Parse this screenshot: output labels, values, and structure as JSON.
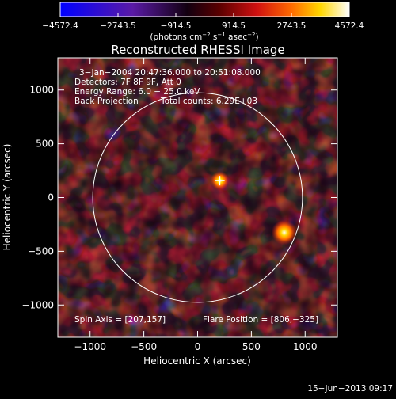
{
  "chart_data": {
    "type": "heatmap",
    "title": "Reconstructed RHESSI Image",
    "xlabel": "Heliocentric X (arcsec)",
    "ylabel": "Heliocentric Y (arcsec)",
    "xlim": [
      -1300,
      1300
    ],
    "ylim": [
      -1300,
      1300
    ],
    "x_ticks": [
      -1000,
      -500,
      0,
      500,
      1000
    ],
    "y_ticks": [
      -1000,
      -500,
      0,
      500,
      1000
    ],
    "x_tick_labels": [
      "−1000",
      "−500",
      "0",
      "500",
      "1000"
    ],
    "y_tick_labels": [
      "−1000",
      "−500",
      "0",
      "500",
      "1000"
    ],
    "colorbar": {
      "range": [
        -4572.4,
        4572.4
      ],
      "tick_values": [
        -4572.4,
        -2743.5,
        -914.5,
        914.5,
        2743.5,
        4572.4
      ],
      "tick_labels": [
        "−4572.4",
        "−2743.5",
        "−914.5",
        "914.5",
        "2743.5",
        "4572.4"
      ],
      "units_main": "(photons cm",
      "units_exp1": "−2",
      "units_mid": " s",
      "units_exp2": "−1",
      "units_end": " asec",
      "units_exp3": "−2",
      "units_close": ")"
    },
    "annotations": {
      "time_range": "3−Jan−2004 20:47:36.000 to 20:51:08.000",
      "detectors": "Detectors: 7F 8F 9F, Att 0",
      "energy": "Energy Range: 6.0 − 25.0 keV",
      "method": "Back Projection",
      "counts": "Total counts: 6.29E+03",
      "spin_axis": "Spin Axis = [207,157]",
      "flare_position": "Flare Position = [806,−325]"
    },
    "solar_limb_radius_arcsec": 975,
    "sources": [
      {
        "x": 806,
        "y": -325,
        "value": 4572.4
      },
      {
        "x": 207,
        "y": 157,
        "value": 2743.5
      }
    ],
    "colors": {
      "colormap": [
        "#0000ff",
        "#5a1aa6",
        "#000000",
        "#b01010",
        "#ff2000",
        "#ff8c00",
        "#ffd700",
        "#ffffff"
      ]
    }
  },
  "footer": {
    "timestamp": "15−Jun−2013 09:17"
  }
}
